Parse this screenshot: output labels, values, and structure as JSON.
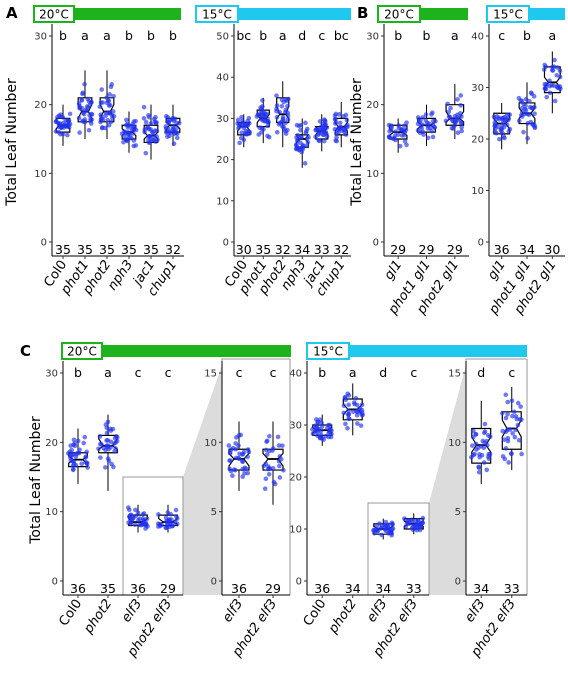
{
  "panels": [
    {
      "label": "A",
      "temp": "20°C",
      "bar_color": "#1db31d",
      "chart_data": {
        "type": "box",
        "ylabel": "Total Leaf Number",
        "ylim": [
          0,
          30
        ],
        "yticks": [
          0,
          10,
          20,
          30
        ],
        "categories": [
          "Col0",
          "phot1",
          "phot2",
          "nph3",
          "jac1",
          "chup1"
        ],
        "italic": [
          false,
          true,
          true,
          true,
          true,
          true
        ],
        "letters": [
          "b",
          "a",
          "a",
          "b",
          "b",
          "b"
        ],
        "n": [
          "35",
          "35",
          "35",
          "35",
          "35",
          "32"
        ],
        "boxes": [
          {
            "q1": 16,
            "median": 17,
            "q3": 18,
            "wlo": 14,
            "whi": 20,
            "nlo": 16.5,
            "nhi": 17.5
          },
          {
            "q1": 17.5,
            "median": 19,
            "q3": 21,
            "wlo": 15,
            "whi": 25,
            "nlo": 18,
            "nhi": 20
          },
          {
            "q1": 17.5,
            "median": 19,
            "q3": 21,
            "wlo": 15,
            "whi": 25,
            "nlo": 18,
            "nhi": 20
          },
          {
            "q1": 15,
            "median": 16,
            "q3": 17,
            "wlo": 13,
            "whi": 19,
            "nlo": 15.5,
            "nhi": 16.5
          },
          {
            "q1": 14.5,
            "median": 15.5,
            "q3": 17,
            "wlo": 12,
            "whi": 20,
            "nlo": 15,
            "nhi": 16
          },
          {
            "q1": 16,
            "median": 17,
            "q3": 18,
            "wlo": 14,
            "whi": 20,
            "nlo": 16.5,
            "nhi": 17.5
          }
        ]
      }
    },
    {
      "label": "",
      "temp": "15°C",
      "bar_color": "#1ec8ee",
      "chart_data": {
        "type": "box",
        "ylabel": "",
        "ylim": [
          0,
          50
        ],
        "yticks": [
          0,
          10,
          20,
          30,
          40,
          50
        ],
        "categories": [
          "Col0",
          "phot1",
          "phot2",
          "nph3",
          "jac1",
          "chup1"
        ],
        "italic": [
          false,
          true,
          true,
          true,
          true,
          true
        ],
        "letters": [
          "bc",
          "b",
          "a",
          "d",
          "c",
          "bc"
        ],
        "n": [
          "30",
          "35",
          "32",
          "34",
          "33",
          "32"
        ],
        "boxes": [
          {
            "q1": 26,
            "median": 28,
            "q3": 29,
            "wlo": 23,
            "whi": 31,
            "nlo": 27,
            "nhi": 29
          },
          {
            "q1": 28,
            "median": 30,
            "q3": 32,
            "wlo": 24,
            "whi": 35,
            "nlo": 29,
            "nhi": 31
          },
          {
            "q1": 29,
            "median": 31,
            "q3": 35,
            "wlo": 23,
            "whi": 39,
            "nlo": 30,
            "nhi": 33
          },
          {
            "q1": 23,
            "median": 25,
            "q3": 26,
            "wlo": 18,
            "whi": 30,
            "nlo": 24,
            "nhi": 26
          },
          {
            "q1": 25,
            "median": 27,
            "q3": 28,
            "wlo": 22,
            "whi": 31,
            "nlo": 26,
            "nhi": 28
          },
          {
            "q1": 26,
            "median": 28,
            "q3": 30,
            "wlo": 23,
            "whi": 34,
            "nlo": 27,
            "nhi": 29
          }
        ]
      }
    },
    {
      "label": "B",
      "temp": "20°C",
      "bar_color": "#1db31d",
      "chart_data": {
        "type": "box",
        "ylabel": "Total Leaf Number",
        "ylim": [
          0,
          30
        ],
        "yticks": [
          0,
          10,
          20,
          30
        ],
        "categories": [
          "gl1",
          "phot1 gl1",
          "phot2 gl1"
        ],
        "italic": [
          true,
          true,
          true
        ],
        "letters": [
          "b",
          "b",
          "a"
        ],
        "n": [
          "29",
          "29",
          "29"
        ],
        "boxes": [
          {
            "q1": 15,
            "median": 16,
            "q3": 17,
            "wlo": 13,
            "whi": 18,
            "nlo": 15.5,
            "nhi": 16.5
          },
          {
            "q1": 16,
            "median": 17,
            "q3": 18,
            "wlo": 14,
            "whi": 20,
            "nlo": 16.5,
            "nhi": 17.5
          },
          {
            "q1": 17,
            "median": 18,
            "q3": 20,
            "wlo": 15,
            "whi": 23,
            "nlo": 17.5,
            "nhi": 19
          }
        ]
      }
    },
    {
      "label": "",
      "temp": "15°C",
      "bar_color": "#1ec8ee",
      "chart_data": {
        "type": "box",
        "ylabel": "",
        "ylim": [
          0,
          40
        ],
        "yticks": [
          0,
          10,
          20,
          30,
          40
        ],
        "categories": [
          "gl1",
          "phot1 gl1",
          "phot2 gl1"
        ],
        "italic": [
          true,
          true,
          true
        ],
        "letters": [
          "c",
          "b",
          "a"
        ],
        "n": [
          "36",
          "34",
          "30"
        ],
        "boxes": [
          {
            "q1": 21,
            "median": 23,
            "q3": 25,
            "wlo": 18,
            "whi": 27,
            "nlo": 22,
            "nhi": 24
          },
          {
            "q1": 23,
            "median": 25,
            "q3": 27,
            "wlo": 19,
            "whi": 31,
            "nlo": 24,
            "nhi": 26
          },
          {
            "q1": 29,
            "median": 31,
            "q3": 34,
            "wlo": 25,
            "whi": 37,
            "nlo": 30,
            "nhi": 32
          }
        ]
      }
    },
    {
      "label": "C",
      "temp": "20°C",
      "bar_color": "#1db31d",
      "chart_data": {
        "type": "box",
        "ylabel": "Total Leaf Number",
        "ylim": [
          0,
          30
        ],
        "yticks": [
          0,
          10,
          20,
          30
        ],
        "categories": [
          "Col0",
          "phot2",
          "elf3",
          "phot2 elf3"
        ],
        "italic": [
          false,
          true,
          true,
          true
        ],
        "letters": [
          "b",
          "a",
          "c",
          "c"
        ],
        "n": [
          "36",
          "35",
          "36",
          "29"
        ],
        "boxes": [
          {
            "q1": 16.5,
            "median": 17.5,
            "q3": 18.5,
            "wlo": 14,
            "whi": 22,
            "nlo": 17,
            "nhi": 18
          },
          {
            "q1": 18.5,
            "median": 19.5,
            "q3": 21,
            "wlo": 13,
            "whi": 24,
            "nlo": 19,
            "nhi": 20.5
          },
          {
            "q1": 8,
            "median": 8.5,
            "q3": 9.5,
            "wlo": 7,
            "whi": 11,
            "nlo": 8.2,
            "nhi": 9
          },
          {
            "q1": 8,
            "median": 8.5,
            "q3": 9.5,
            "wlo": 7,
            "whi": 11,
            "nlo": 8.2,
            "nhi": 9
          }
        ]
      }
    },
    {
      "label": "",
      "temp": "",
      "bar_color": "#1db31d",
      "chart_data": {
        "type": "box",
        "ylabel": "",
        "ylim": [
          0,
          15
        ],
        "yticks": [
          0,
          5,
          10,
          15
        ],
        "categories": [
          "elf3",
          "phot2 elf3"
        ],
        "italic": [
          true,
          true
        ],
        "letters": [
          "c",
          "c"
        ],
        "n": [
          "36",
          "29"
        ],
        "boxes": [
          {
            "q1": 8,
            "median": 8.8,
            "q3": 9.5,
            "wlo": 6.5,
            "whi": 11.5,
            "nlo": 8.3,
            "nhi": 9.2
          },
          {
            "q1": 8,
            "median": 8.8,
            "q3": 9.5,
            "wlo": 5.5,
            "whi": 11.5,
            "nlo": 8.3,
            "nhi": 9.2
          }
        ]
      }
    },
    {
      "label": "",
      "temp": "15°C",
      "bar_color": "#1ec8ee",
      "chart_data": {
        "type": "box",
        "ylabel": "",
        "ylim": [
          0,
          40
        ],
        "yticks": [
          0,
          10,
          20,
          30,
          40
        ],
        "categories": [
          "Col0",
          "phot2",
          "elf3",
          "phot2 elf3"
        ],
        "italic": [
          false,
          true,
          true,
          true
        ],
        "letters": [
          "b",
          "a",
          "d",
          "c"
        ],
        "n": [
          "36",
          "34",
          "34",
          "33"
        ],
        "boxes": [
          {
            "q1": 28,
            "median": 29,
            "q3": 30,
            "wlo": 26,
            "whi": 32,
            "nlo": 28.5,
            "nhi": 29.5
          },
          {
            "q1": 31,
            "median": 33,
            "q3": 35,
            "wlo": 28,
            "whi": 38,
            "nlo": 32,
            "nhi": 34
          },
          {
            "q1": 9,
            "median": 10,
            "q3": 11,
            "wlo": 8,
            "whi": 12,
            "nlo": 9.5,
            "nhi": 10.5
          },
          {
            "q1": 10,
            "median": 11,
            "q3": 12,
            "wlo": 9,
            "whi": 13,
            "nlo": 10.5,
            "nhi": 11.5
          }
        ]
      }
    },
    {
      "label": "",
      "temp": "",
      "bar_color": "#1ec8ee",
      "chart_data": {
        "type": "box",
        "ylabel": "",
        "ylim": [
          0,
          15
        ],
        "yticks": [
          0,
          5,
          10,
          15
        ],
        "categories": [
          "elf3",
          "phot2 elf3"
        ],
        "italic": [
          true,
          true
        ],
        "letters": [
          "d",
          "c"
        ],
        "n": [
          "34",
          "33"
        ],
        "boxes": [
          {
            "q1": 8.5,
            "median": 9.8,
            "q3": 11,
            "wlo": 7,
            "whi": 13,
            "nlo": 9.3,
            "nhi": 10.4
          },
          {
            "q1": 9.5,
            "median": 11,
            "q3": 12.2,
            "wlo": 8,
            "whi": 14,
            "nlo": 10.4,
            "nhi": 11.6
          }
        ]
      }
    }
  ]
}
